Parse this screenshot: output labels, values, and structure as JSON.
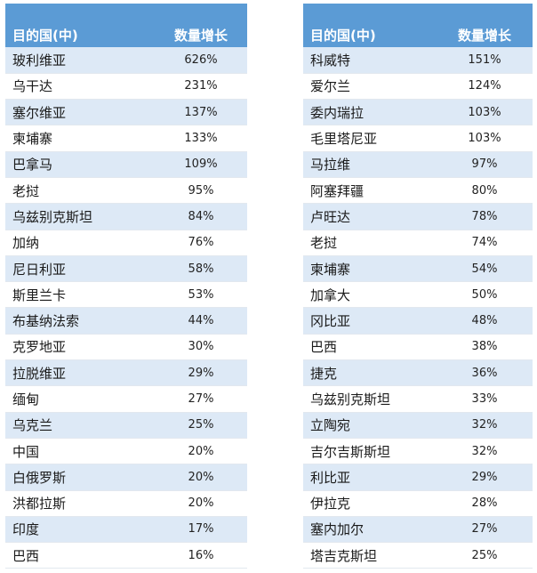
{
  "left": {
    "header": {
      "country": "目的国(中)",
      "growth": "数量增长"
    },
    "rows": [
      {
        "country": "玻利维亚",
        "growth": "626%"
      },
      {
        "country": "乌干达",
        "growth": "231%"
      },
      {
        "country": "塞尔维亚",
        "growth": "137%"
      },
      {
        "country": "柬埔寨",
        "growth": "133%"
      },
      {
        "country": "巴拿马",
        "growth": "109%"
      },
      {
        "country": "老挝",
        "growth": "95%"
      },
      {
        "country": "乌兹别克斯坦",
        "growth": "84%"
      },
      {
        "country": "加纳",
        "growth": "76%"
      },
      {
        "country": "尼日利亚",
        "growth": "58%"
      },
      {
        "country": "斯里兰卡",
        "growth": "53%"
      },
      {
        "country": "布基纳法索",
        "growth": "44%"
      },
      {
        "country": "克罗地亚",
        "growth": "30%"
      },
      {
        "country": "拉脱维亚",
        "growth": "29%"
      },
      {
        "country": "缅甸",
        "growth": "27%"
      },
      {
        "country": "乌克兰",
        "growth": "25%"
      },
      {
        "country": "中国",
        "growth": "20%"
      },
      {
        "country": "白俄罗斯",
        "growth": "20%"
      },
      {
        "country": "洪都拉斯",
        "growth": "20%"
      },
      {
        "country": "印度",
        "growth": "17%"
      },
      {
        "country": "巴西",
        "growth": "16%"
      }
    ]
  },
  "right": {
    "header": {
      "country": "目的国(中)",
      "growth": "数量增长"
    },
    "rows": [
      {
        "country": "科威特",
        "growth": "151%"
      },
      {
        "country": "爱尔兰",
        "growth": "124%"
      },
      {
        "country": "委内瑞拉",
        "growth": "103%"
      },
      {
        "country": "毛里塔尼亚",
        "growth": "103%"
      },
      {
        "country": "马拉维",
        "growth": "97%"
      },
      {
        "country": "阿塞拜疆",
        "growth": "80%"
      },
      {
        "country": "卢旺达",
        "growth": "78%"
      },
      {
        "country": "老挝",
        "growth": "74%"
      },
      {
        "country": "柬埔寨",
        "growth": "54%"
      },
      {
        "country": "加拿大",
        "growth": "50%"
      },
      {
        "country": "冈比亚",
        "growth": "48%"
      },
      {
        "country": "巴西",
        "growth": "38%"
      },
      {
        "country": "捷克",
        "growth": "36%"
      },
      {
        "country": "乌兹别克斯坦",
        "growth": "33%"
      },
      {
        "country": "立陶宛",
        "growth": "32%"
      },
      {
        "country": "吉尔吉斯斯坦",
        "growth": "32%"
      },
      {
        "country": "利比亚",
        "growth": "29%"
      },
      {
        "country": "伊拉克",
        "growth": "28%"
      },
      {
        "country": "塞内加尔",
        "growth": "27%"
      },
      {
        "country": "塔吉克斯坦",
        "growth": "25%"
      }
    ]
  },
  "colors": {
    "header": "#5b9bd5",
    "band": "#dde9f6"
  }
}
